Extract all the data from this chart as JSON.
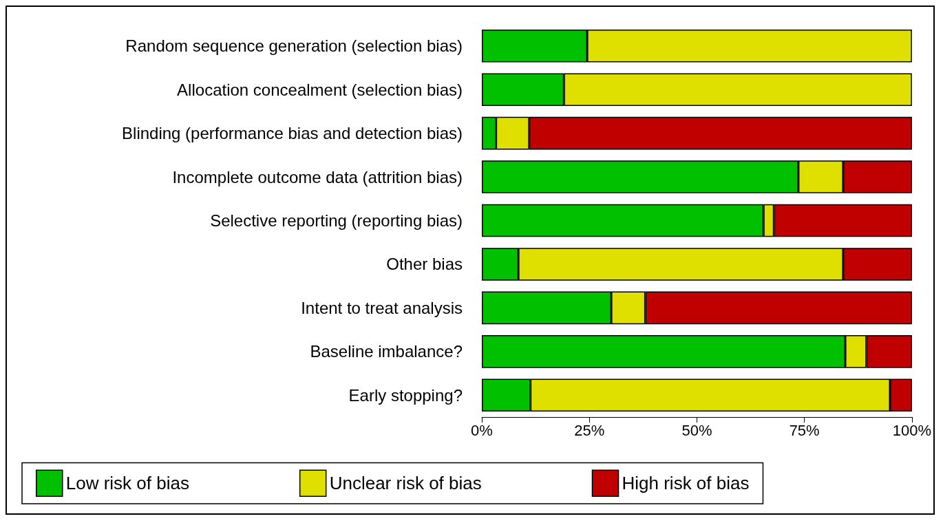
{
  "chart_data": {
    "type": "bar",
    "orientation": "horizontal",
    "stacked": true,
    "categories": [
      "Random sequence generation (selection bias)",
      "Allocation concealment (selection bias)",
      "Blinding (performance bias and detection bias)",
      "Incomplete outcome data (attrition bias)",
      "Selective reporting (reporting bias)",
      "Other bias",
      "Intent to treat analysis",
      "Baseline imbalance?",
      "Early stopping?"
    ],
    "series": [
      {
        "name": "Low risk of bias",
        "color": "#00c000",
        "values": [
          24.5,
          19.1,
          3.3,
          73.6,
          65.5,
          8.5,
          30.1,
          84.5,
          11.3
        ]
      },
      {
        "name": "Unclear risk of bias",
        "color": "#e0e000",
        "values": [
          75.5,
          80.9,
          7.7,
          10.4,
          2.4,
          75.5,
          7.9,
          4.9,
          83.6
        ]
      },
      {
        "name": "High risk of bias",
        "color": "#c00000",
        "values": [
          null,
          null,
          89.0,
          16.0,
          32.1,
          16.0,
          62.0,
          10.6,
          5.1
        ]
      }
    ],
    "xlim": [
      0,
      100
    ],
    "xticks": [
      {
        "value": 0,
        "label": "0%"
      },
      {
        "value": 25,
        "label": "25%"
      },
      {
        "value": 50,
        "label": "50%"
      },
      {
        "value": 75,
        "label": "75%"
      },
      {
        "value": 100,
        "label": "100%"
      }
    ],
    "grid": false,
    "legend": "bottom"
  }
}
